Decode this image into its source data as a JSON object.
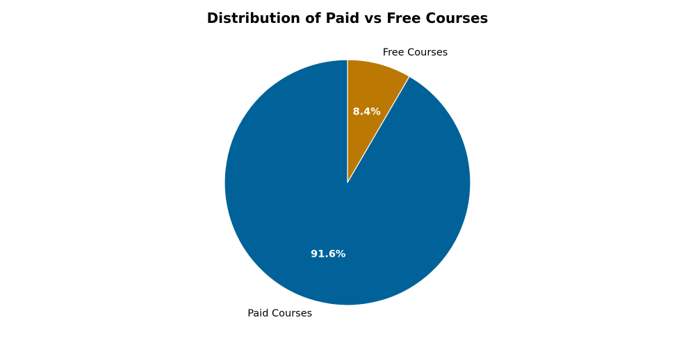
{
  "chart_data": {
    "type": "pie",
    "title": "Distribution of Paid vs Free Courses",
    "slices": [
      {
        "label": "Free Courses",
        "value": 8.4,
        "pct_label": "8.4%",
        "color": "#bb7802"
      },
      {
        "label": "Paid Courses",
        "value": 91.6,
        "pct_label": "91.6%",
        "color": "#006298"
      }
    ],
    "start_angle": "12 o'clock",
    "direction": "clockwise",
    "slice_edge_color": "#ffffff"
  }
}
